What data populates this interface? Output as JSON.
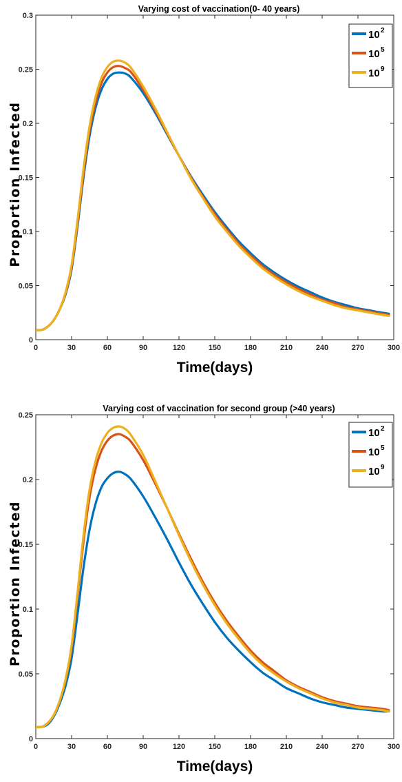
{
  "chart_data": [
    {
      "type": "line",
      "title": "Varying cost of vaccination(0- 40 years)",
      "xlabel": "Time(days)",
      "ylabel": "Proportion Infected",
      "xlim": [
        0,
        300
      ],
      "ylim": [
        0,
        0.3
      ],
      "xticks": [
        "0",
        "30",
        "60",
        "90",
        "120",
        "150",
        "180",
        "210",
        "240",
        "270",
        "300"
      ],
      "yticks": [
        "0",
        "0.05",
        "0.1",
        "0.15",
        "0.2",
        "0.25",
        "0.3"
      ],
      "grid": false,
      "legend_position": "top-right",
      "x": [
        0,
        5,
        10,
        15,
        20,
        25,
        30,
        35,
        40,
        45,
        50,
        55,
        60,
        65,
        70,
        75,
        80,
        90,
        100,
        110,
        120,
        130,
        140,
        150,
        160,
        170,
        180,
        190,
        200,
        210,
        220,
        230,
        240,
        250,
        260,
        270,
        280,
        290,
        296
      ],
      "series": [
        {
          "name": "10",
          "exponent": "2",
          "color": "#0072BD",
          "values": [
            0.009,
            0.009,
            0.012,
            0.018,
            0.028,
            0.042,
            0.065,
            0.105,
            0.15,
            0.188,
            0.214,
            0.231,
            0.241,
            0.246,
            0.247,
            0.246,
            0.242,
            0.228,
            0.21,
            0.19,
            0.17,
            0.151,
            0.134,
            0.118,
            0.104,
            0.091,
            0.08,
            0.07,
            0.062,
            0.055,
            0.049,
            0.044,
            0.039,
            0.035,
            0.032,
            0.029,
            0.027,
            0.025,
            0.024
          ]
        },
        {
          "name": "10",
          "exponent": "5",
          "color": "#D95319",
          "values": [
            0.009,
            0.009,
            0.012,
            0.018,
            0.028,
            0.043,
            0.067,
            0.108,
            0.154,
            0.193,
            0.219,
            0.237,
            0.247,
            0.252,
            0.253,
            0.251,
            0.247,
            0.231,
            0.212,
            0.191,
            0.17,
            0.15,
            0.132,
            0.116,
            0.102,
            0.089,
            0.078,
            0.068,
            0.06,
            0.053,
            0.047,
            0.042,
            0.037,
            0.034,
            0.03,
            0.028,
            0.026,
            0.024,
            0.023
          ]
        },
        {
          "name": "10",
          "exponent": "9",
          "color": "#EDB120",
          "values": [
            0.009,
            0.009,
            0.012,
            0.018,
            0.028,
            0.044,
            0.069,
            0.111,
            0.158,
            0.197,
            0.224,
            0.242,
            0.252,
            0.257,
            0.258,
            0.256,
            0.251,
            0.234,
            0.214,
            0.192,
            0.17,
            0.149,
            0.131,
            0.114,
            0.1,
            0.087,
            0.076,
            0.066,
            0.058,
            0.051,
            0.045,
            0.04,
            0.036,
            0.032,
            0.029,
            0.027,
            0.025,
            0.023,
            0.022
          ]
        }
      ]
    },
    {
      "type": "line",
      "title": "Varying cost of vaccination for second group (>40 years)",
      "xlabel": "Time(days)",
      "ylabel": "Proportion Infected",
      "xlim": [
        0,
        300
      ],
      "ylim": [
        0,
        0.25
      ],
      "xticks": [
        "0",
        "30",
        "60",
        "90",
        "120",
        "150",
        "180",
        "210",
        "240",
        "270",
        "300"
      ],
      "yticks": [
        "0",
        "0.05",
        "0.1",
        "0.15",
        "0.2",
        "0.25"
      ],
      "grid": false,
      "legend_position": "top-right",
      "x": [
        0,
        5,
        10,
        15,
        20,
        25,
        30,
        35,
        40,
        45,
        50,
        55,
        60,
        65,
        70,
        75,
        80,
        90,
        100,
        110,
        120,
        130,
        140,
        150,
        160,
        170,
        180,
        190,
        200,
        210,
        220,
        230,
        240,
        250,
        260,
        270,
        280,
        290,
        296
      ],
      "series": [
        {
          "name": "10",
          "exponent": "2",
          "color": "#0072BD",
          "values": [
            0.009,
            0.009,
            0.011,
            0.017,
            0.027,
            0.041,
            0.062,
            0.096,
            0.132,
            0.161,
            0.181,
            0.194,
            0.201,
            0.205,
            0.206,
            0.204,
            0.2,
            0.187,
            0.171,
            0.154,
            0.136,
            0.119,
            0.104,
            0.09,
            0.078,
            0.068,
            0.059,
            0.051,
            0.045,
            0.039,
            0.035,
            0.031,
            0.028,
            0.026,
            0.024,
            0.023,
            0.022,
            0.021,
            0.021
          ]
        },
        {
          "name": "10",
          "exponent": "5",
          "color": "#D95319",
          "values": [
            0.009,
            0.009,
            0.012,
            0.018,
            0.029,
            0.045,
            0.07,
            0.11,
            0.152,
            0.186,
            0.208,
            0.222,
            0.23,
            0.234,
            0.235,
            0.233,
            0.229,
            0.215,
            0.197,
            0.178,
            0.158,
            0.139,
            0.121,
            0.105,
            0.091,
            0.079,
            0.068,
            0.059,
            0.052,
            0.045,
            0.04,
            0.036,
            0.032,
            0.029,
            0.027,
            0.025,
            0.024,
            0.023,
            0.022
          ]
        },
        {
          "name": "10",
          "exponent": "9",
          "color": "#EDB120",
          "values": [
            0.009,
            0.009,
            0.012,
            0.018,
            0.029,
            0.046,
            0.072,
            0.113,
            0.157,
            0.192,
            0.214,
            0.228,
            0.236,
            0.24,
            0.241,
            0.239,
            0.234,
            0.219,
            0.199,
            0.178,
            0.157,
            0.137,
            0.119,
            0.103,
            0.089,
            0.077,
            0.066,
            0.057,
            0.05,
            0.044,
            0.039,
            0.035,
            0.031,
            0.028,
            0.026,
            0.024,
            0.023,
            0.022,
            0.021
          ]
        }
      ]
    }
  ]
}
